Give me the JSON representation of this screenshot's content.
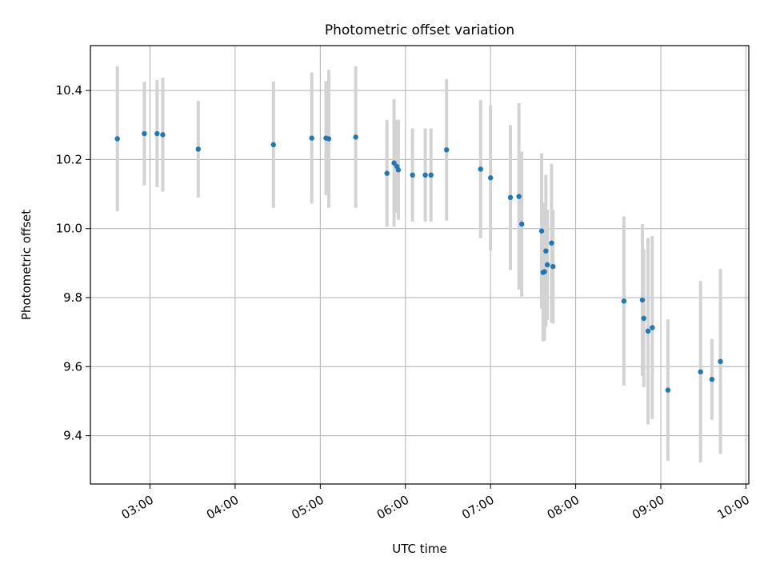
{
  "chart_data": {
    "type": "scatter",
    "title": "Photometric offset variation",
    "xlabel": "UTC time",
    "ylabel": "Photometric offset",
    "xlim": [
      "02:18",
      "10:02"
    ],
    "ylim": [
      9.26,
      10.53
    ],
    "grid": true,
    "x_ticks": [
      "03:00",
      "04:00",
      "05:00",
      "06:00",
      "07:00",
      "08:00",
      "09:00",
      "10:00"
    ],
    "y_ticks": [
      9.4,
      9.6,
      9.8,
      10.0,
      10.2,
      10.4
    ],
    "colors": {
      "point": "#1f77b4",
      "errorbar": "#d3d3d3",
      "grid": "#b0b0b0"
    },
    "series": [
      {
        "points": [
          {
            "x": "02:37",
            "y": 10.26,
            "err": 0.21
          },
          {
            "x": "02:56",
            "y": 10.275,
            "err": 0.15
          },
          {
            "x": "03:05",
            "y": 10.275,
            "err": 0.155
          },
          {
            "x": "03:09",
            "y": 10.272,
            "err": 0.165
          },
          {
            "x": "03:34",
            "y": 10.23,
            "err": 0.14
          },
          {
            "x": "04:27",
            "y": 10.243,
            "err": 0.183
          },
          {
            "x": "04:54",
            "y": 10.262,
            "err": 0.19
          },
          {
            "x": "05:04",
            "y": 10.262,
            "err": 0.165
          },
          {
            "x": "05:06",
            "y": 10.26,
            "err": 0.2
          },
          {
            "x": "05:25",
            "y": 10.265,
            "err": 0.205
          },
          {
            "x": "05:47",
            "y": 10.16,
            "err": 0.155
          },
          {
            "x": "05:52",
            "y": 10.19,
            "err": 0.185
          },
          {
            "x": "05:54",
            "y": 10.18,
            "err": 0.135
          },
          {
            "x": "05:55",
            "y": 10.17,
            "err": 0.145
          },
          {
            "x": "06:05",
            "y": 10.155,
            "err": 0.135
          },
          {
            "x": "06:14",
            "y": 10.155,
            "err": 0.135
          },
          {
            "x": "06:18",
            "y": 10.155,
            "err": 0.135
          },
          {
            "x": "06:29",
            "y": 10.228,
            "err": 0.205
          },
          {
            "x": "06:53",
            "y": 10.172,
            "err": 0.2
          },
          {
            "x": "07:00",
            "y": 10.147,
            "err": 0.21
          },
          {
            "x": "07:14",
            "y": 10.09,
            "err": 0.21
          },
          {
            "x": "07:20",
            "y": 10.093,
            "err": 0.27
          },
          {
            "x": "07:22",
            "y": 10.013,
            "err": 0.21
          },
          {
            "x": "07:36",
            "y": 9.993,
            "err": 0.225
          },
          {
            "x": "07:37",
            "y": 9.873,
            "err": 0.2
          },
          {
            "x": "07:38",
            "y": 9.875,
            "err": 0.2
          },
          {
            "x": "07:39",
            "y": 9.935,
            "err": 0.22
          },
          {
            "x": "07:40",
            "y": 9.895,
            "err": 0.16
          },
          {
            "x": "07:43",
            "y": 9.958,
            "err": 0.23
          },
          {
            "x": "07:44",
            "y": 9.89,
            "err": 0.165
          },
          {
            "x": "08:34",
            "y": 9.79,
            "err": 0.245
          },
          {
            "x": "08:47",
            "y": 9.793,
            "err": 0.22
          },
          {
            "x": "08:48",
            "y": 9.74,
            "err": 0.2
          },
          {
            "x": "08:51",
            "y": 9.703,
            "err": 0.27
          },
          {
            "x": "08:54",
            "y": 9.713,
            "err": 0.265
          },
          {
            "x": "09:05",
            "y": 9.532,
            "err": 0.205
          },
          {
            "x": "09:28",
            "y": 9.585,
            "err": 0.263
          },
          {
            "x": "09:36",
            "y": 9.563,
            "err": 0.117
          },
          {
            "x": "09:42",
            "y": 9.615,
            "err": 0.268
          }
        ]
      }
    ]
  }
}
